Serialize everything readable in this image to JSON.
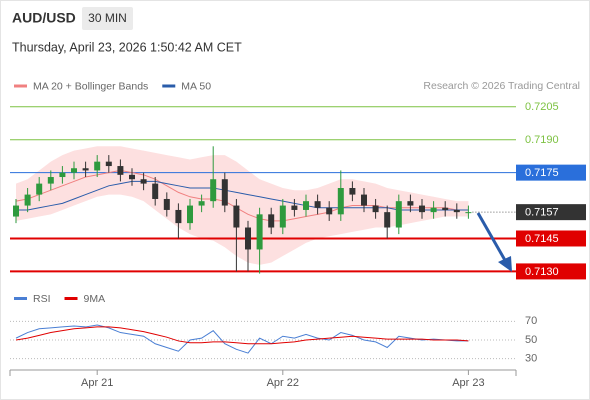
{
  "header": {
    "symbol": "AUD/USD",
    "interval": "30 MIN",
    "datetime": "Thursday, April 23, 2026 1:50:42 AM CET"
  },
  "chart_data": [
    {
      "type": "candlestick",
      "source": "Research © 2026 Trading Central",
      "up_color": "#2e9a3e",
      "down_color": "#333333",
      "ylim": [
        0.7127,
        0.7209
      ],
      "open": [
        0.7155,
        0.716,
        0.7165,
        0.717,
        0.7173,
        0.7175,
        0.7177,
        0.7176,
        0.718,
        0.7178,
        0.7174,
        0.7172,
        0.717,
        0.7163,
        0.7158,
        0.7152,
        0.716,
        0.7162,
        0.7172,
        0.716,
        0.715,
        0.714,
        0.7156,
        0.715,
        0.716,
        0.7158,
        0.7162,
        0.7159,
        0.7156,
        0.7168,
        0.7165,
        0.716,
        0.7157,
        0.715,
        0.7162,
        0.716,
        0.7157,
        0.7159,
        0.7158,
        0.7157
      ],
      "high": [
        0.7163,
        0.7168,
        0.7173,
        0.7176,
        0.7178,
        0.718,
        0.718,
        0.7183,
        0.7183,
        0.7181,
        0.7177,
        0.7175,
        0.7173,
        0.7166,
        0.7161,
        0.7163,
        0.7165,
        0.7187,
        0.7175,
        0.7163,
        0.7153,
        0.7159,
        0.7159,
        0.7163,
        0.7163,
        0.7165,
        0.7165,
        0.7162,
        0.7176,
        0.7171,
        0.7168,
        0.7163,
        0.716,
        0.7165,
        0.7165,
        0.7163,
        0.7162,
        0.7162,
        0.7161,
        0.716
      ],
      "low": [
        0.7152,
        0.7157,
        0.7162,
        0.7167,
        0.717,
        0.7172,
        0.7173,
        0.7173,
        0.7175,
        0.7171,
        0.7169,
        0.7167,
        0.716,
        0.7155,
        0.7145,
        0.7149,
        0.7157,
        0.7159,
        0.7157,
        0.713,
        0.713,
        0.7129,
        0.7147,
        0.7147,
        0.7155,
        0.7155,
        0.7156,
        0.7153,
        0.7153,
        0.7162,
        0.7157,
        0.7154,
        0.7145,
        0.7147,
        0.7157,
        0.7154,
        0.7154,
        0.7155,
        0.7154,
        0.7154
      ],
      "close": [
        0.716,
        0.7165,
        0.717,
        0.7173,
        0.7175,
        0.7177,
        0.7176,
        0.718,
        0.7178,
        0.7174,
        0.7172,
        0.717,
        0.7163,
        0.7158,
        0.7152,
        0.716,
        0.7162,
        0.7172,
        0.716,
        0.715,
        0.714,
        0.7156,
        0.715,
        0.716,
        0.7158,
        0.7162,
        0.7159,
        0.7156,
        0.7168,
        0.7165,
        0.716,
        0.7157,
        0.715,
        0.7162,
        0.716,
        0.7157,
        0.7159,
        0.7158,
        0.7157,
        0.7157
      ],
      "series": [
        {
          "name": "MA 20 + Bollinger Bands",
          "color": "#f08080",
          "band_color": "#fde0e0",
          "values": [
            0.7162,
            0.7163,
            0.7165,
            0.7167,
            0.7169,
            0.7171,
            0.7173,
            0.7174,
            0.7175,
            0.7176,
            0.7175,
            0.7174,
            0.7172,
            0.7169,
            0.7166,
            0.7164,
            0.7163,
            0.7163,
            0.7162,
            0.7159,
            0.7156,
            0.7154,
            0.7153,
            0.7153,
            0.7154,
            0.7155,
            0.7156,
            0.7157,
            0.7159,
            0.716,
            0.716,
            0.716,
            0.7159,
            0.7159,
            0.7159,
            0.7159,
            0.7159,
            0.7159,
            0.7158,
            0.7158
          ],
          "upper": [
            0.717,
            0.7172,
            0.7176,
            0.718,
            0.7183,
            0.7185,
            0.7186,
            0.7187,
            0.7187,
            0.7187,
            0.7186,
            0.7185,
            0.7184,
            0.7183,
            0.7182,
            0.7181,
            0.7182,
            0.7183,
            0.7183,
            0.718,
            0.7176,
            0.7172,
            0.717,
            0.7168,
            0.7167,
            0.7167,
            0.7168,
            0.717,
            0.7172,
            0.7172,
            0.7171,
            0.717,
            0.7168,
            0.7167,
            0.7166,
            0.7165,
            0.7164,
            0.7163,
            0.7162,
            0.7162
          ],
          "lower": [
            0.7153,
            0.7154,
            0.7155,
            0.7156,
            0.7158,
            0.716,
            0.7162,
            0.7164,
            0.7165,
            0.7165,
            0.7164,
            0.7162,
            0.7158,
            0.7154,
            0.715,
            0.7147,
            0.7145,
            0.7144,
            0.7141,
            0.7137,
            0.7134,
            0.7133,
            0.7134,
            0.7137,
            0.714,
            0.7143,
            0.7145,
            0.7146,
            0.7147,
            0.7148,
            0.7149,
            0.715,
            0.715,
            0.7151,
            0.7152,
            0.7153,
            0.7154,
            0.7155,
            0.7155,
            0.7155
          ]
        },
        {
          "name": "MA 50",
          "color": "#2a5caa",
          "values": [
            0.7158,
            0.7158,
            0.7159,
            0.716,
            0.7161,
            0.7163,
            0.7165,
            0.7167,
            0.7169,
            0.717,
            0.7171,
            0.7171,
            0.7171,
            0.717,
            0.7169,
            0.7168,
            0.7168,
            0.7168,
            0.7167,
            0.7166,
            0.7165,
            0.7164,
            0.7163,
            0.7162,
            0.7161,
            0.716,
            0.7159,
            0.7159,
            0.7159,
            0.7159,
            0.7159,
            0.7159,
            0.7159,
            0.7158,
            0.7158,
            0.7158,
            0.7158,
            0.7158,
            0.7158,
            0.7158
          ]
        }
      ],
      "levels": [
        {
          "value": 0.7205,
          "color": "#7dc242",
          "style": "text"
        },
        {
          "value": 0.719,
          "label": "0.7190",
          "color": "#7dc242",
          "style": "text"
        },
        {
          "value": 0.7175,
          "color": "#2a6fdb",
          "style": "box"
        },
        {
          "value": 0.7145,
          "color": "#e00000",
          "style": "box"
        },
        {
          "value": 0.713,
          "label": "0.7130",
          "color": "#e00000",
          "style": "box"
        }
      ],
      "last_price": 0.7157,
      "last_color": "#333333"
    },
    {
      "type": "line",
      "ylim": [
        20,
        80
      ],
      "yticks": [
        30,
        50,
        70
      ],
      "grid": true,
      "categories": [
        null,
        null,
        null,
        null,
        null,
        null,
        null,
        "Apr 21",
        null,
        null,
        null,
        null,
        null,
        null,
        null,
        null,
        null,
        null,
        null,
        null,
        null,
        null,
        null,
        "Apr 22",
        null,
        null,
        null,
        null,
        null,
        null,
        null,
        null,
        null,
        null,
        null,
        null,
        null,
        null,
        null,
        "Apr 23"
      ],
      "series": [
        {
          "name": "RSI",
          "color": "#4a7fd4",
          "values": [
            52,
            58,
            62,
            63,
            64,
            65,
            64,
            66,
            63,
            58,
            56,
            54,
            46,
            42,
            38,
            50,
            52,
            60,
            46,
            40,
            36,
            52,
            46,
            54,
            52,
            56,
            52,
            50,
            58,
            55,
            50,
            48,
            42,
            54,
            52,
            50,
            51,
            50,
            49,
            49
          ]
        },
        {
          "name": "9MA",
          "color": "#e00000",
          "values": [
            50,
            52,
            55,
            58,
            60,
            62,
            63,
            64,
            64,
            63,
            61,
            59,
            56,
            53,
            49,
            47,
            47,
            48,
            48,
            47,
            46,
            46,
            46,
            47,
            48,
            50,
            51,
            52,
            53,
            54,
            53,
            52,
            51,
            51,
            51,
            51,
            50,
            50,
            50,
            49
          ]
        }
      ]
    }
  ]
}
